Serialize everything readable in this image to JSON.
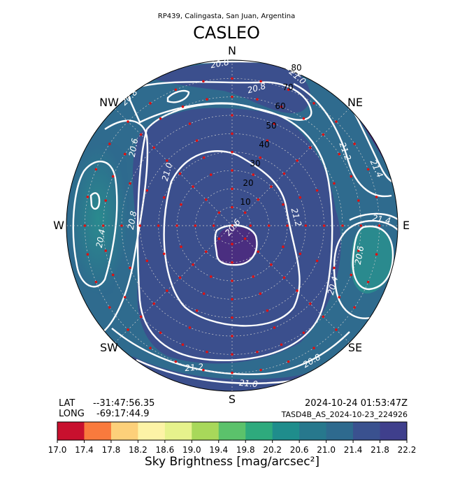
{
  "header": {
    "subtitle": "RP439, Calingasta, San Juan, Argentina",
    "title": "CASLEO"
  },
  "location": {
    "lat_label": "LAT",
    "lat_value": "--31:47:56.35",
    "long_label": "LONG",
    "long_value": "-69:17:44.9",
    "timestamp": "2024-10-24 01:53:47Z",
    "file_id": "TASD4B_AS_2024-10-23_224926"
  },
  "chart_data": {
    "type": "polar-contour",
    "directions": [
      "N",
      "NE",
      "E",
      "SE",
      "S",
      "SW",
      "W",
      "NW"
    ],
    "radial_ticks": [
      10,
      20,
      30,
      40,
      50,
      60,
      70,
      80
    ],
    "zenith_range": [
      0,
      90
    ],
    "contour_labels": [
      "20.8",
      "21.0",
      "20.8",
      "20.8",
      "20.6",
      "21.0",
      "21.2",
      "21.4",
      "20.6",
      "20.4",
      "20.8",
      "21.2",
      "21.4",
      "20.6",
      "20.4",
      "20.8",
      "21.2",
      "21.0",
      "21.2"
    ],
    "colorbar": {
      "ticks": [
        "17.0",
        "17.4",
        "17.8",
        "18.2",
        "18.6",
        "19.0",
        "19.4",
        "19.8",
        "20.2",
        "20.6",
        "21.0",
        "21.4",
        "21.8",
        "22.2"
      ],
      "colors": [
        "#c8102e",
        "#f97a3d",
        "#fdd07a",
        "#fdf3a6",
        "#e6f28c",
        "#a8d85a",
        "#5bc26b",
        "#2eaa7d",
        "#1f8d8c",
        "#27788d",
        "#2e6a8e",
        "#3a518f",
        "#3f3f8c",
        "#46207a"
      ],
      "label": "Sky Brightness [mag/arcsec²]",
      "range": [
        17.0,
        22.2
      ]
    }
  }
}
